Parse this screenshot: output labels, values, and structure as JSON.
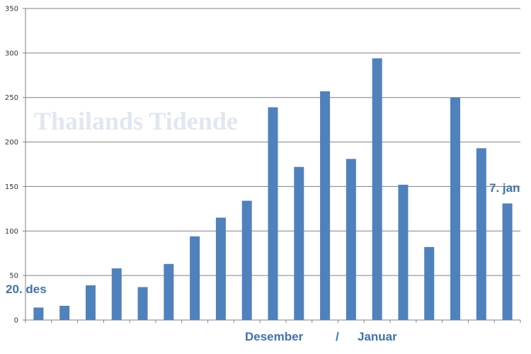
{
  "chart_data": {
    "type": "bar",
    "title": "",
    "xlabel": "",
    "ylabel": "",
    "ylim": [
      0,
      350
    ],
    "yticks": [
      0,
      50,
      100,
      150,
      200,
      250,
      300,
      350
    ],
    "grid": true,
    "legend": "none",
    "values": [
      14,
      16,
      39,
      58,
      37,
      63,
      94,
      115,
      134,
      239,
      172,
      257,
      181,
      294,
      152,
      82,
      250,
      193,
      131
    ],
    "annotations": {
      "start": "20. des",
      "end": "7. jan",
      "month_left": "Desember",
      "separator": "/",
      "month_right": "Januar"
    },
    "watermark": "Thailands Tidende",
    "colors": {
      "bar": "#4f81bd",
      "annotation": "#3f73ad",
      "grid": "#808080",
      "watermark": "#c5d4e6"
    }
  }
}
